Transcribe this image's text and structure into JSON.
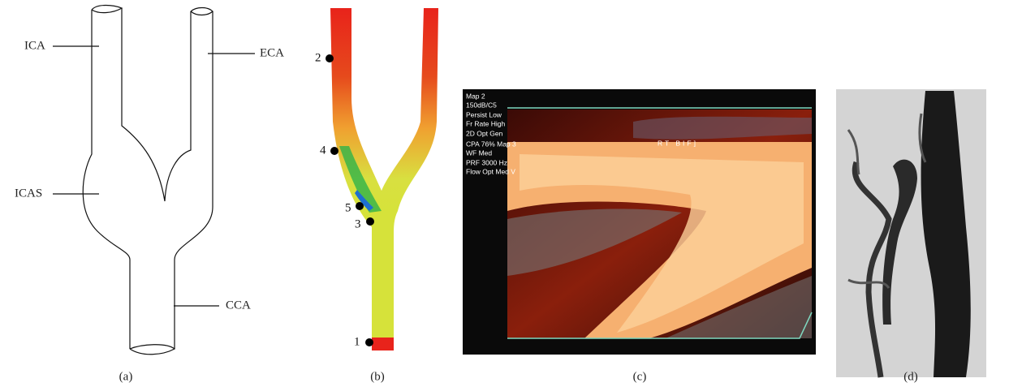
{
  "panels": [
    {
      "label": "(a)",
      "annotations": [
        "ICA",
        "ECA",
        "ICAS",
        "CCA"
      ]
    },
    {
      "label": "(b)",
      "points": [
        "2",
        "4",
        "5",
        "3",
        "1"
      ]
    },
    {
      "label": "(c)",
      "overlay": [
        "Map 2",
        "150dB/C5",
        "Persist Low",
        "Fr Rate High",
        "2D Opt Gen",
        "CPA 76% Map 3",
        "WF Med",
        "PRF 3000 Hz",
        "Flow Opt Med V"
      ],
      "marker": "RT BIF]"
    },
    {
      "label": "(d)"
    }
  ]
}
